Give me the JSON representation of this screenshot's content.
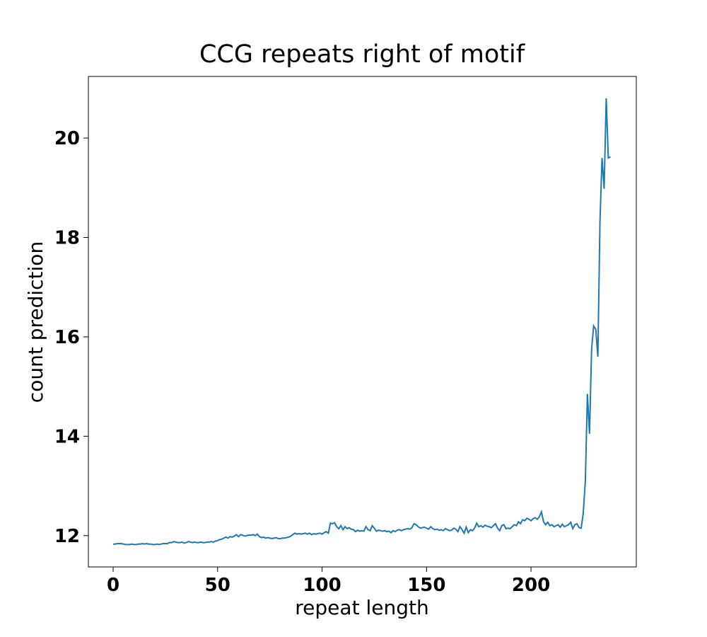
{
  "chart_data": {
    "type": "line",
    "title": "CCG repeats right of motif",
    "x_label": "repeat length",
    "y_label": "count prediction",
    "x": [
      0,
      1,
      2,
      3,
      4,
      5,
      6,
      7,
      8,
      9,
      10,
      11,
      12,
      13,
      14,
      15,
      16,
      17,
      18,
      19,
      20,
      21,
      22,
      23,
      24,
      25,
      26,
      27,
      28,
      29,
      30,
      31,
      32,
      33,
      34,
      35,
      36,
      37,
      38,
      39,
      40,
      41,
      42,
      43,
      44,
      45,
      46,
      47,
      48,
      49,
      50,
      51,
      52,
      53,
      54,
      55,
      56,
      57,
      58,
      59,
      60,
      61,
      62,
      63,
      64,
      65,
      66,
      67,
      68,
      69,
      70,
      71,
      72,
      73,
      74,
      75,
      76,
      77,
      78,
      79,
      80,
      81,
      82,
      83,
      84,
      85,
      86,
      87,
      88,
      89,
      90,
      91,
      92,
      93,
      94,
      95,
      96,
      97,
      98,
      99,
      100,
      101,
      102,
      103,
      104,
      105,
      106,
      107,
      108,
      109,
      110,
      111,
      112,
      113,
      114,
      115,
      116,
      117,
      118,
      119,
      120,
      121,
      122,
      123,
      124,
      125,
      126,
      127,
      128,
      129,
      130,
      131,
      132,
      133,
      134,
      135,
      136,
      137,
      138,
      139,
      140,
      141,
      142,
      143,
      144,
      145,
      146,
      147,
      148,
      149,
      150,
      151,
      152,
      153,
      154,
      155,
      156,
      157,
      158,
      159,
      160,
      161,
      162,
      163,
      164,
      165,
      166,
      167,
      168,
      169,
      170,
      171,
      172,
      173,
      174,
      175,
      176,
      177,
      178,
      179,
      180,
      181,
      182,
      183,
      184,
      185,
      186,
      187,
      188,
      189,
      190,
      191,
      192,
      193,
      194,
      195,
      196,
      197,
      198,
      199,
      200,
      201,
      202,
      203,
      204,
      205,
      206,
      207,
      208,
      209,
      210,
      211,
      212,
      213,
      214,
      215,
      216,
      217,
      218,
      219,
      220,
      221,
      222,
      223,
      224,
      225,
      226,
      227,
      228,
      229,
      230,
      231,
      232,
      233,
      234,
      235,
      236,
      237,
      238
    ],
    "series": [
      {
        "name": "count prediction",
        "color": "#1f77b4",
        "values": [
          11.83,
          11.83,
          11.84,
          11.84,
          11.84,
          11.83,
          11.82,
          11.82,
          11.82,
          11.83,
          11.82,
          11.82,
          11.83,
          11.83,
          11.84,
          11.83,
          11.84,
          11.83,
          11.83,
          11.82,
          11.82,
          11.83,
          11.82,
          11.83,
          11.84,
          11.84,
          11.84,
          11.86,
          11.86,
          11.88,
          11.87,
          11.86,
          11.86,
          11.87,
          11.85,
          11.86,
          11.88,
          11.87,
          11.86,
          11.87,
          11.86,
          11.86,
          11.87,
          11.86,
          11.86,
          11.87,
          11.87,
          11.88,
          11.87,
          11.89,
          11.9,
          11.92,
          11.93,
          11.95,
          11.97,
          11.95,
          11.98,
          11.97,
          11.99,
          12.02,
          11.98,
          12.02,
          12.01,
          11.99,
          12.0,
          12.01,
          12.01,
          12.02,
          12.0,
          12.03,
          11.98,
          11.96,
          11.97,
          11.95,
          11.96,
          11.95,
          11.94,
          11.95,
          11.96,
          11.94,
          11.94,
          11.95,
          11.95,
          11.96,
          11.97,
          11.99,
          12.02,
          12.05,
          12.03,
          12.04,
          12.03,
          12.04,
          12.05,
          12.03,
          12.05,
          12.02,
          12.04,
          12.03,
          12.04,
          12.05,
          12.03,
          12.06,
          12.08,
          12.05,
          12.25,
          12.24,
          12.26,
          12.18,
          12.14,
          12.2,
          12.12,
          12.18,
          12.14,
          12.16,
          12.13,
          12.12,
          12.08,
          12.11,
          12.09,
          12.1,
          12.09,
          12.18,
          12.12,
          12.1,
          12.2,
          12.15,
          12.09,
          12.11,
          12.1,
          12.09,
          12.1,
          12.08,
          12.09,
          12.06,
          12.1,
          12.08,
          12.11,
          12.12,
          12.1,
          12.12,
          12.13,
          12.14,
          12.13,
          12.16,
          12.24,
          12.22,
          12.18,
          12.15,
          12.16,
          12.17,
          12.15,
          12.13,
          12.18,
          12.14,
          12.12,
          12.13,
          12.11,
          12.12,
          12.1,
          12.14,
          12.12,
          12.1,
          12.11,
          12.15,
          12.13,
          12.08,
          12.18,
          12.12,
          12.05,
          12.17,
          12.06,
          12.12,
          12.1,
          12.15,
          12.25,
          12.18,
          12.2,
          12.17,
          12.21,
          12.19,
          12.18,
          12.16,
          12.2,
          12.24,
          12.15,
          12.1,
          12.2,
          12.22,
          12.14,
          12.15,
          12.14,
          12.18,
          12.22,
          12.2,
          12.28,
          12.24,
          12.32,
          12.3,
          12.35,
          12.33,
          12.3,
          12.34,
          12.36,
          12.33,
          12.38,
          12.48,
          12.28,
          12.22,
          12.27,
          12.2,
          12.22,
          12.18,
          12.2,
          12.22,
          12.17,
          12.23,
          12.18,
          12.2,
          12.22,
          12.27,
          12.14,
          12.22,
          12.24,
          12.16,
          12.15,
          12.45,
          13.1,
          14.85,
          14.05,
          15.75,
          16.22,
          16.15,
          15.6,
          18.3,
          19.6,
          18.98,
          20.8,
          19.6,
          19.62
        ]
      }
    ],
    "xlim": [
      -11.85,
      250.4
    ],
    "ylim": [
      11.37,
      21.24
    ],
    "xticks": [
      0,
      50,
      100,
      150,
      200
    ],
    "yticks": [
      12,
      14,
      16,
      18,
      20
    ]
  }
}
